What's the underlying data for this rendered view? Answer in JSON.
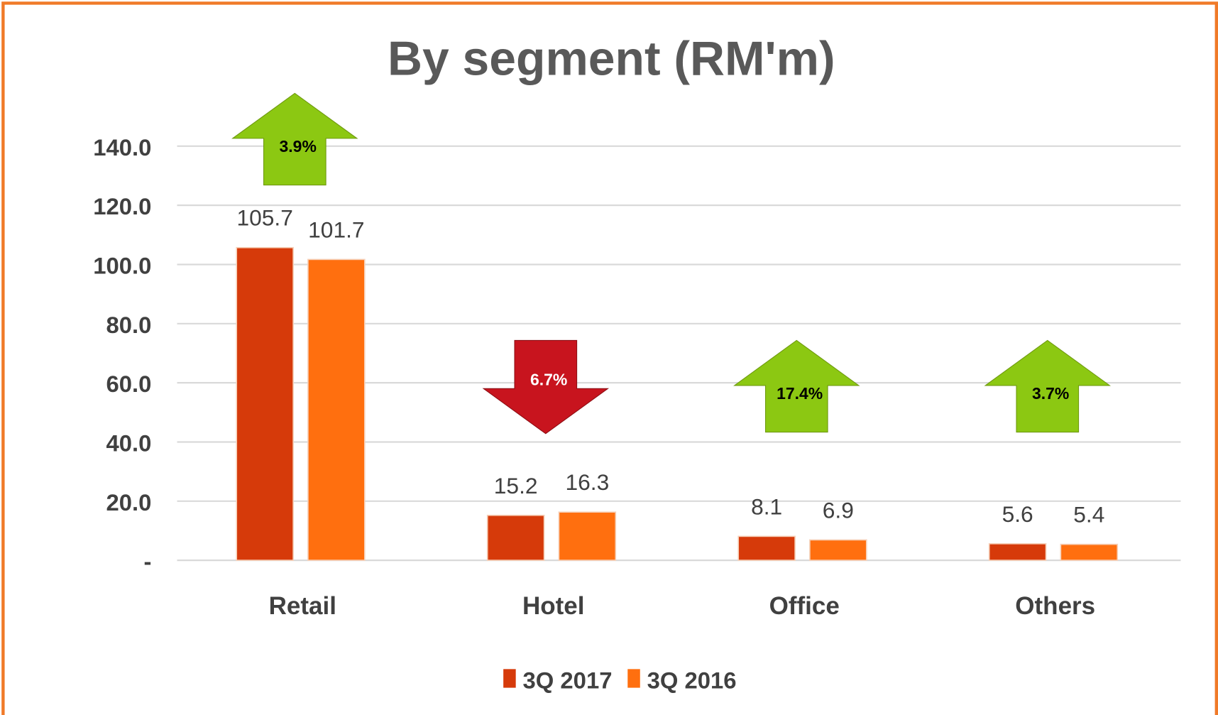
{
  "chart_data": {
    "type": "bar",
    "title": "By segment (RM'm)",
    "categories": [
      "Retail",
      "Hotel",
      "Office",
      "Others"
    ],
    "series": [
      {
        "name": "3Q 2017",
        "color": "#d63a0a",
        "values": [
          105.7,
          15.2,
          8.1,
          5.6
        ]
      },
      {
        "name": "3Q 2016",
        "color": "#ff6f0f",
        "values": [
          101.7,
          16.3,
          6.9,
          5.4
        ]
      }
    ],
    "ylim": [
      0,
      140
    ],
    "yticks": [
      {
        "value": 0,
        "label": "-"
      },
      {
        "value": 20,
        "label": "20.0"
      },
      {
        "value": 40,
        "label": "40.0"
      },
      {
        "value": 60,
        "label": "60.0"
      },
      {
        "value": 80,
        "label": "80.0"
      },
      {
        "value": 100,
        "label": "100.0"
      },
      {
        "value": 120,
        "label": "120.0"
      },
      {
        "value": 140,
        "label": "140.0"
      }
    ],
    "grid": true,
    "legend": "bottom",
    "annotations": [
      {
        "text": "3.9%",
        "direction": "up",
        "color": "#8cc812"
      },
      {
        "text": "6.7%",
        "direction": "down",
        "color": "#c8141e"
      },
      {
        "text": "17.4%",
        "direction": "up",
        "color": "#8cc812"
      },
      {
        "text": "3.7%",
        "direction": "up",
        "color": "#8cc812"
      }
    ]
  }
}
